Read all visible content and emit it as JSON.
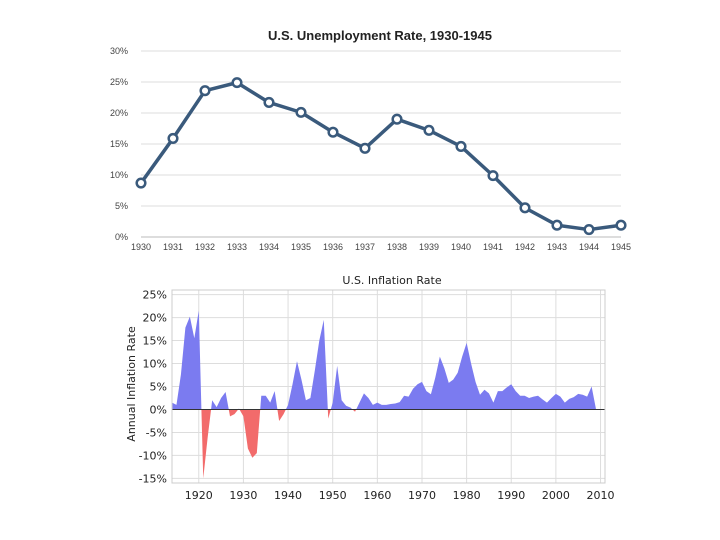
{
  "chart_data": [
    {
      "type": "line",
      "title": "U.S. Unemployment Rate, 1930-1945",
      "xlabel": "",
      "ylabel": "",
      "x": [
        1930,
        1931,
        1932,
        1933,
        1934,
        1935,
        1936,
        1937,
        1938,
        1939,
        1940,
        1941,
        1942,
        1943,
        1944,
        1945
      ],
      "x_tick_labels": [
        "1930",
        "1931",
        "1932",
        "1933",
        "1934",
        "1935",
        "1936",
        "1937",
        "1938",
        "1939",
        "1940",
        "1941",
        "1942",
        "1943",
        "1944",
        "1945"
      ],
      "y_tick_labels": [
        "0%",
        "5%",
        "10%",
        "15%",
        "20%",
        "25%",
        "30%"
      ],
      "y_ticks": [
        0,
        5,
        10,
        15,
        20,
        25,
        30
      ],
      "ylim": [
        0,
        30
      ],
      "series": [
        {
          "name": "Unemployment Rate",
          "color": "#3a5a7c",
          "values": [
            8.7,
            15.9,
            23.6,
            24.9,
            21.7,
            20.1,
            16.9,
            14.3,
            19.0,
            17.2,
            14.6,
            9.9,
            4.7,
            1.9,
            1.2,
            1.9
          ]
        }
      ],
      "grid": true
    },
    {
      "type": "area",
      "title": "U.S. Inflation Rate",
      "xlabel": "",
      "ylabel": "Annual Inflation Rate",
      "xlim": [
        1914,
        2011
      ],
      "x_ticks": [
        1920,
        1930,
        1940,
        1950,
        1960,
        1970,
        1980,
        1990,
        2000,
        2010
      ],
      "x_tick_labels": [
        "1920",
        "1930",
        "1940",
        "1950",
        "1960",
        "1970",
        "1980",
        "1990",
        "2000",
        "2010"
      ],
      "y_ticks": [
        25,
        20,
        15,
        10,
        5,
        0,
        -5,
        -10,
        -15
      ],
      "y_tick_labels": [
        "25%",
        "20%",
        "15%",
        "10%",
        "5%",
        "0%",
        "-5%",
        "-10%",
        "-15%"
      ],
      "ylim": [
        -16,
        26
      ],
      "positive_color": "#7b7bf0",
      "negative_color": "#f26b6b",
      "series": [
        {
          "name": "Annual Inflation Rate",
          "x": [
            1914,
            1915,
            1916,
            1917,
            1918,
            1919,
            1920,
            1921,
            1922,
            1923,
            1924,
            1925,
            1926,
            1927,
            1928,
            1929,
            1930,
            1931,
            1932,
            1933,
            1934,
            1935,
            1936,
            1937,
            1938,
            1939,
            1940,
            1941,
            1942,
            1943,
            1944,
            1945,
            1946,
            1947,
            1948,
            1949,
            1950,
            1951,
            1952,
            1953,
            1954,
            1955,
            1956,
            1957,
            1958,
            1959,
            1960,
            1961,
            1962,
            1963,
            1964,
            1965,
            1966,
            1967,
            1968,
            1969,
            1970,
            1971,
            1972,
            1973,
            1974,
            1975,
            1976,
            1977,
            1978,
            1979,
            1980,
            1981,
            1982,
            1983,
            1984,
            1985,
            1986,
            1987,
            1988,
            1989,
            1990,
            1991,
            1992,
            1993,
            1994,
            1995,
            1996,
            1997,
            1998,
            1999,
            2000,
            2001,
            2002,
            2003,
            2004,
            2005,
            2006,
            2007,
            2008,
            2009
          ],
          "values": [
            1.5,
            1.0,
            7.6,
            17.8,
            20.2,
            15.5,
            21.5,
            -15.0,
            -6.0,
            2.0,
            0.5,
            2.5,
            3.8,
            -1.5,
            -1.0,
            0.2,
            -1.5,
            -8.5,
            -10.5,
            -9.5,
            3.0,
            3.0,
            1.5,
            4.0,
            -2.5,
            -1.0,
            1.0,
            5.5,
            10.5,
            6.5,
            2.0,
            2.5,
            8.5,
            15.0,
            19.5,
            -2.0,
            1.5,
            9.5,
            2.0,
            0.8,
            0.4,
            -0.5,
            1.5,
            3.5,
            2.5,
            1.0,
            1.5,
            1.0,
            1.0,
            1.2,
            1.3,
            1.6,
            3.0,
            2.8,
            4.5,
            5.5,
            6.0,
            4.0,
            3.3,
            7.0,
            11.5,
            9.0,
            5.8,
            6.5,
            8.0,
            11.5,
            14.5,
            10.0,
            6.0,
            3.2,
            4.3,
            3.5,
            1.5,
            4.0,
            4.0,
            4.8,
            5.5,
            4.0,
            3.0,
            3.0,
            2.5,
            2.8,
            3.0,
            2.2,
            1.5,
            2.5,
            3.4,
            2.8,
            1.5,
            2.3,
            2.7,
            3.4,
            3.2,
            2.8,
            5.0,
            0.0
          ]
        }
      ],
      "grid": true
    }
  ]
}
